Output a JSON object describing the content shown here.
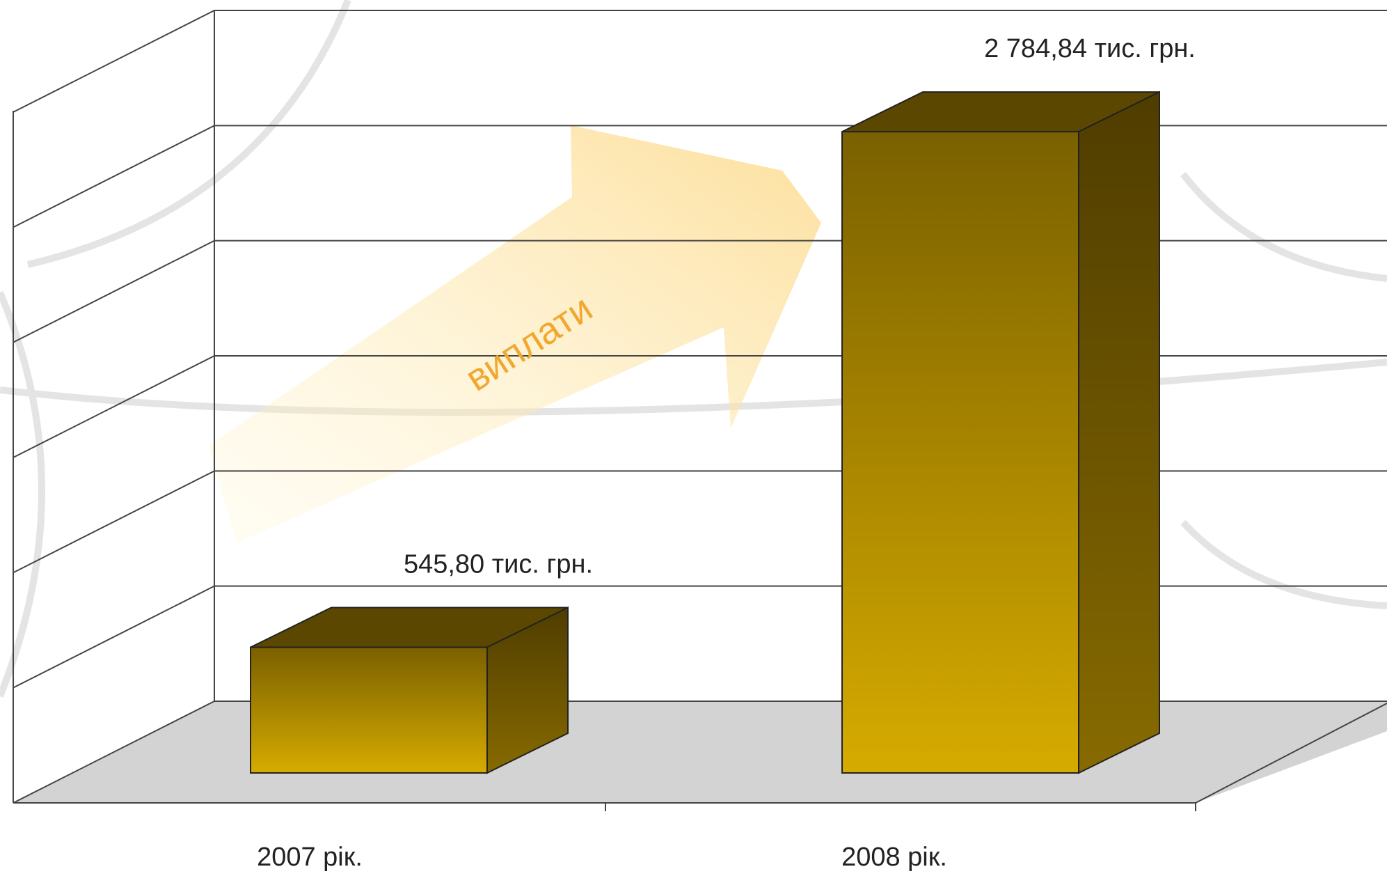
{
  "chart_data": {
    "type": "bar",
    "categories": [
      "2007 рік.",
      "2008 рік."
    ],
    "values": [
      545.8,
      2784.84
    ],
    "value_labels": [
      "545,80 тис. грн.",
      "2 784,84 тис. грн."
    ],
    "annotation": "виплати",
    "ylim": [
      0,
      3000
    ],
    "yticks": [
      0,
      500,
      1000,
      1500,
      2000,
      2500,
      3000
    ],
    "grid": true,
    "color": "#c9a000"
  }
}
